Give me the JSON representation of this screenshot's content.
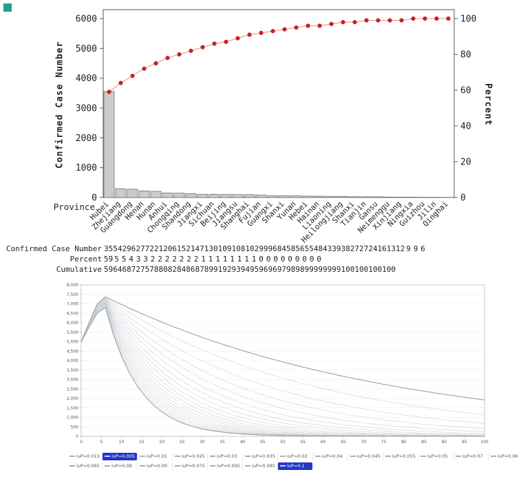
{
  "page": {
    "corner_marker_color": "#2a9d8f"
  },
  "chart_data": [
    {
      "type": "bar",
      "title": "",
      "xlabel": "Province",
      "ylabel_left": "Confirmed Case Number",
      "ylabel_right": "Percent",
      "ylim_left": [
        0,
        6300
      ],
      "ylim_right": [
        0,
        105
      ],
      "y_left_ticks": [
        0,
        1000,
        2000,
        3000,
        4000,
        5000,
        6000
      ],
      "y_right_ticks": [
        0,
        20,
        40,
        60,
        80,
        100
      ],
      "grid": false,
      "categories": [
        "Hubei",
        "Zhejiang",
        "Guangdong",
        "Henan",
        "Hunan",
        "Anhui",
        "Chongqing",
        "Shandong",
        "Jiangxi",
        "Sichuan",
        "Beijing",
        "Jiangsu",
        "Shanghai",
        "Fujian",
        "Guangxi",
        "Shanxi",
        "Yunan",
        "Hebei",
        "Hainan",
        "Liaoning",
        "Heilongjiang",
        "Shanxi",
        "Tianjin",
        "Gansu",
        "Neimenggu",
        "Xinjiang",
        "Ningxia",
        "Guizhou",
        "Jilin",
        "Qinghai"
      ],
      "series": [
        {
          "name": "Confirmed Case Number",
          "type": "bar",
          "values": [
            3554,
            296,
            277,
            221,
            206,
            152,
            147,
            130,
            109,
            108,
            102,
            99,
            96,
            84,
            58,
            56,
            55,
            48,
            43,
            39,
            38,
            27,
            27,
            24,
            16,
            13,
            12,
            9,
            9,
            6
          ]
        },
        {
          "name": "Percent",
          "type": "table-row",
          "values": [
            59,
            5,
            5,
            4,
            3,
            3,
            2,
            2,
            2,
            2,
            2,
            2,
            2,
            1,
            1,
            1,
            1,
            1,
            1,
            1,
            1,
            0,
            0,
            0,
            0,
            0,
            0,
            0,
            0,
            0
          ]
        },
        {
          "name": "Cumulative",
          "type": "line",
          "values": [
            59,
            64,
            68,
            72,
            75,
            78,
            80,
            82,
            84,
            86,
            87,
            89,
            91,
            92,
            93,
            94,
            95,
            96,
            96,
            97,
            98,
            98,
            99,
            99,
            99,
            99,
            100,
            100,
            100,
            100
          ]
        }
      ],
      "bar_fill": "#cbcbcb",
      "bar_stroke": "#6f6f6f",
      "line_color": "#f09090",
      "marker_color": "#d42020"
    },
    {
      "type": "line",
      "title": "",
      "xlim": [
        0,
        100
      ],
      "ylim": [
        0,
        8000
      ],
      "x_tick_step": 5,
      "y_tick_step": 500,
      "grid": true,
      "legend_position": "bottom",
      "initial_value": 5000,
      "legend_rows": [
        [
          "iuP=0.015",
          "iuP=0.005",
          "iuP=0.01",
          "iuP=0.025",
          "iuP=0.03",
          "iuP=0.035",
          "iuP=0.02",
          "iuP=0.04",
          "iuP=0.045",
          "iuP=0.055",
          "iuP=0.05",
          "iuP=0.07",
          "iuP=0.06"
        ],
        [
          "iuP=0.065",
          "iuP=0.08",
          "iuP=0.09",
          "iuP=0.075",
          "iuP=0.095",
          "iuP=0.085",
          "iuP=0.1"
        ]
      ],
      "highlighted": [
        "iuP=0.005",
        "iuP=0.1"
      ],
      "model": {
        "peak_base": 7400,
        "peak_slope": 6000,
        "t_peak": 6,
        "decay_offset": 0.008,
        "decay_scale": 1.1,
        "sample_step": 2
      },
      "curve_color": "#c9ced4",
      "highlight_curve_color": "#8e979f",
      "highlight_bg": "#2336c9"
    }
  ]
}
